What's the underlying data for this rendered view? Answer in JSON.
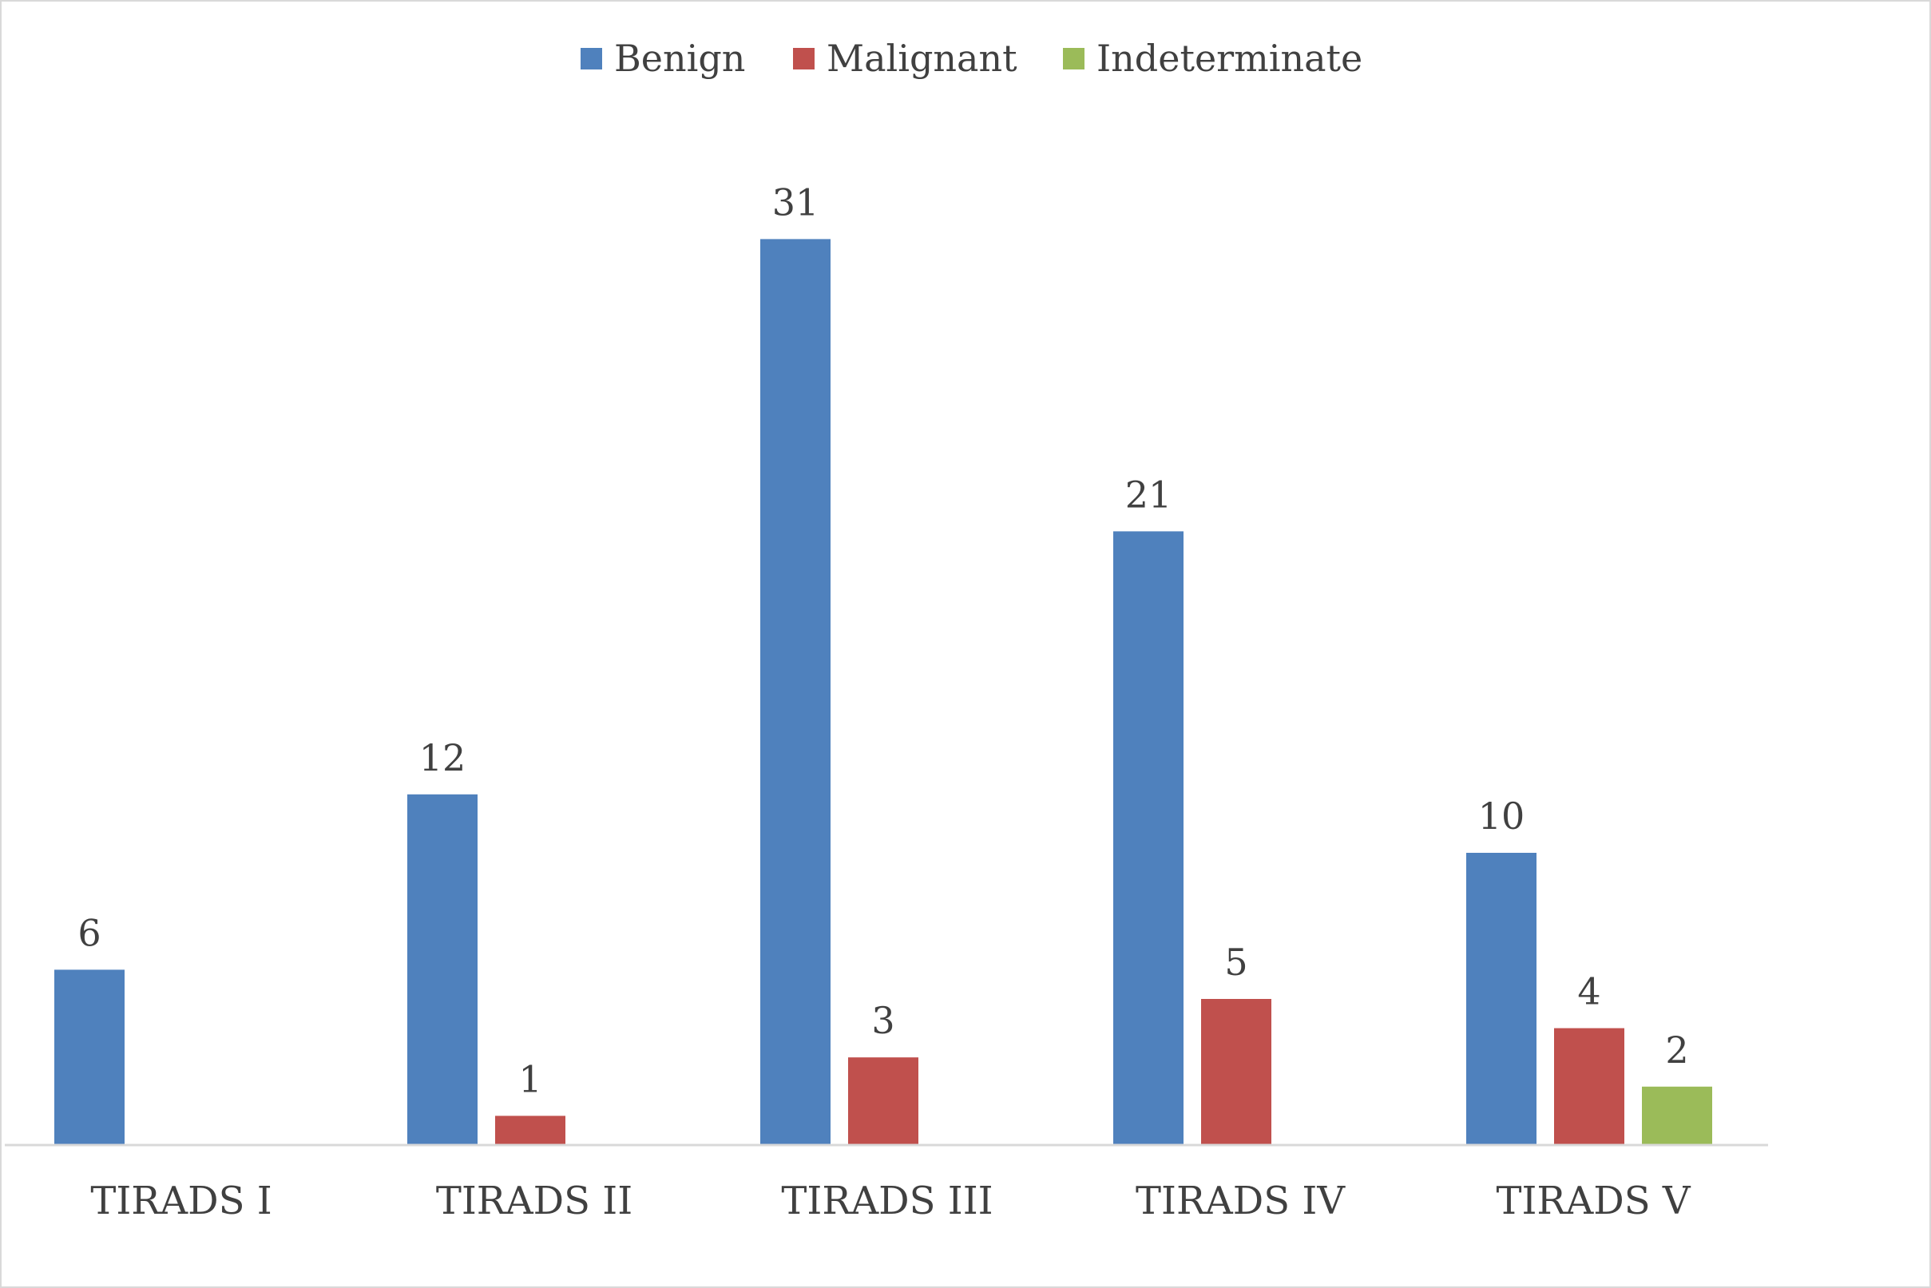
{
  "chart_data": {
    "type": "bar",
    "categories": [
      "TIRADS I",
      "TIRADS II",
      "TIRADS III",
      "TIRADS IV",
      "TIRADS V"
    ],
    "series": [
      {
        "name": "Benign",
        "color": "#4f81bd",
        "values": [
          6,
          12,
          31,
          21,
          10
        ]
      },
      {
        "name": "Malignant",
        "color": "#c0504d",
        "values": [
          null,
          1,
          3,
          5,
          4
        ]
      },
      {
        "name": "Indeterminate",
        "color": "#9bbb59",
        "values": [
          null,
          null,
          null,
          null,
          2
        ]
      }
    ],
    "ylim": [
      0,
      34
    ],
    "grid": false,
    "data_labels": true,
    "legend_position": "top-center"
  }
}
